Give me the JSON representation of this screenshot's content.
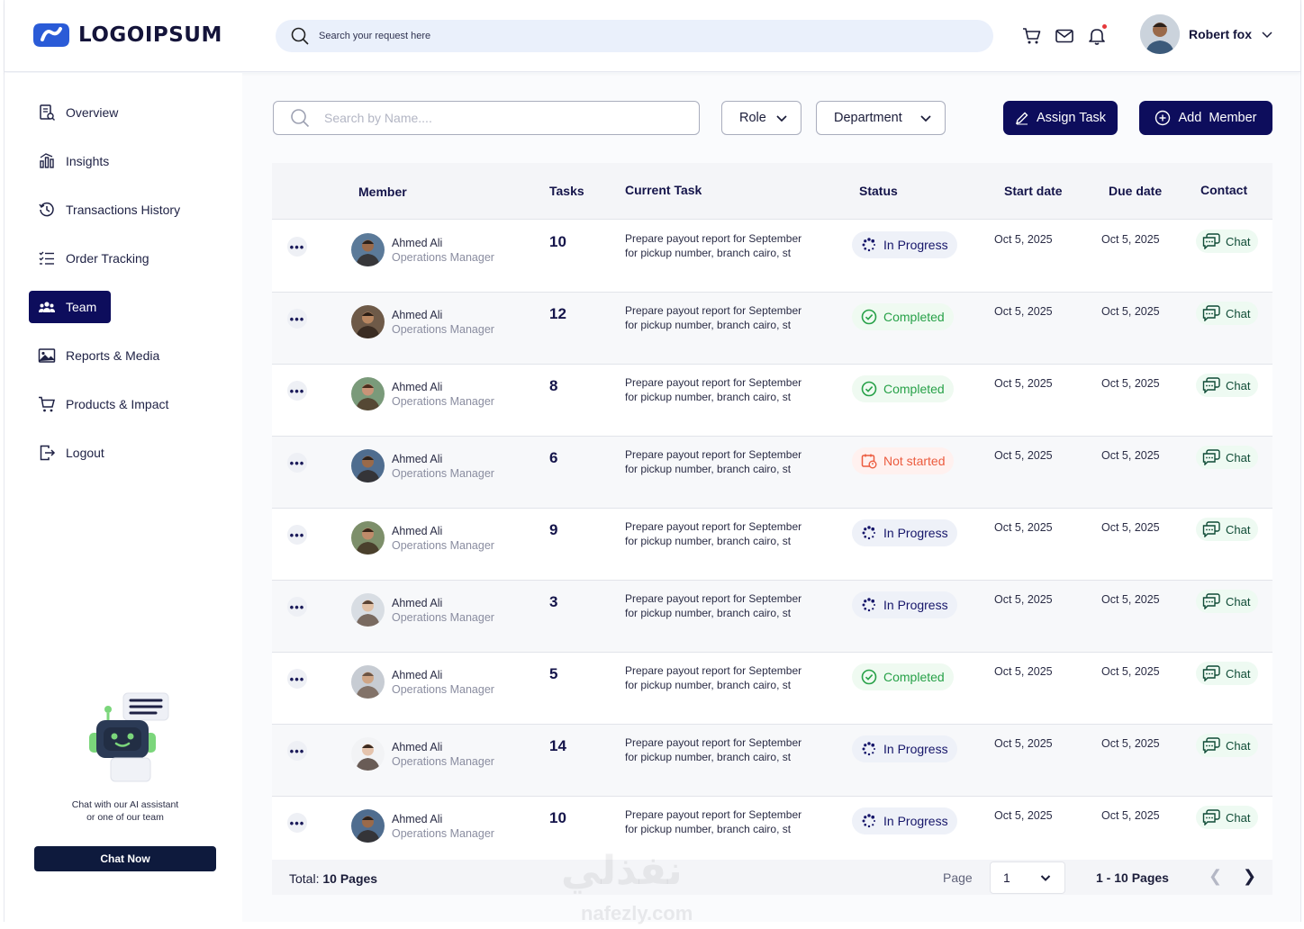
{
  "header": {
    "logo_text": "LOGOIPSUM",
    "search_placeholder": "Search your request here",
    "user_name": "Robert fox"
  },
  "sidebar": {
    "items": [
      {
        "label": "Overview",
        "icon": "document-search-icon"
      },
      {
        "label": "Insights",
        "icon": "chart-icon"
      },
      {
        "label": "Transactions History",
        "icon": "history-icon"
      },
      {
        "label": "Order Tracking",
        "icon": "checklist-icon"
      },
      {
        "label": "Team",
        "icon": "team-icon",
        "active": true
      },
      {
        "label": "Reports & Media",
        "icon": "image-icon"
      },
      {
        "label": "Products & Impact",
        "icon": "cart-icon"
      },
      {
        "label": "Logout",
        "icon": "logout-icon"
      }
    ],
    "assistant_text_line1": "Chat with our AI assistant",
    "assistant_text_line2": "or one of our team",
    "chat_now_label": "Chat Now"
  },
  "toolbar": {
    "name_search_placeholder": "Search by Name....",
    "role_label": "Role",
    "department_label": "Department",
    "assign_task_label": "Assign Task",
    "add_member_label": "Add  Member"
  },
  "table": {
    "headers": {
      "member": "Member",
      "tasks": "Tasks",
      "current_task": "Current Task",
      "status": "Status",
      "start_date": "Start date",
      "due_date": "Due date",
      "contact": "Contact"
    },
    "rows": [
      {
        "name": "Ahmed Ali",
        "role": "Operations Manager",
        "tasks": "10",
        "task": "Prepare payout report for September for pickup number, branch cairo, st",
        "status": "In Progress",
        "status_type": "progress",
        "start": "Oct 5, 2025",
        "due": "Oct 5, 2025",
        "contact": "Chat"
      },
      {
        "name": "Ahmed Ali",
        "role": "Operations Manager",
        "tasks": "12",
        "task": "Prepare payout report for September for pickup number, branch cairo, st",
        "status": "Completed",
        "status_type": "done",
        "start": "Oct 5, 2025",
        "due": "Oct 5, 2025",
        "contact": "Chat"
      },
      {
        "name": "Ahmed Ali",
        "role": "Operations Manager",
        "tasks": "8",
        "task": "Prepare payout report for September for pickup number, branch cairo, st",
        "status": "Completed",
        "status_type": "done",
        "start": "Oct 5, 2025",
        "due": "Oct 5, 2025",
        "contact": "Chat"
      },
      {
        "name": "Ahmed Ali",
        "role": "Operations Manager",
        "tasks": "6",
        "task": "Prepare payout report for September for pickup number, branch cairo, st",
        "status": "Not started",
        "status_type": "not",
        "start": "Oct 5, 2025",
        "due": "Oct 5, 2025",
        "contact": "Chat"
      },
      {
        "name": "Ahmed Ali",
        "role": "Operations Manager",
        "tasks": "9",
        "task": "Prepare payout report for September for pickup number, branch cairo, st",
        "status": "In Progress",
        "status_type": "progress",
        "start": "Oct 5, 2025",
        "due": "Oct 5, 2025",
        "contact": "Chat"
      },
      {
        "name": "Ahmed Ali",
        "role": "Operations Manager",
        "tasks": "3",
        "task": "Prepare payout report for September for pickup number, branch cairo, st",
        "status": "In Progress",
        "status_type": "progress",
        "start": "Oct 5, 2025",
        "due": "Oct 5, 2025",
        "contact": "Chat"
      },
      {
        "name": "Ahmed Ali",
        "role": "Operations Manager",
        "tasks": "5",
        "task": "Prepare payout report for September for pickup number, branch cairo, st",
        "status": "Completed",
        "status_type": "done",
        "start": "Oct 5, 2025",
        "due": "Oct 5, 2025",
        "contact": "Chat"
      },
      {
        "name": "Ahmed Ali",
        "role": "Operations Manager",
        "tasks": "14",
        "task": "Prepare payout report for September for pickup number, branch cairo, st",
        "status": "In Progress",
        "status_type": "progress",
        "start": "Oct 5, 2025",
        "due": "Oct 5, 2025",
        "contact": "Chat"
      },
      {
        "name": "Ahmed Ali",
        "role": "Operations Manager",
        "tasks": "10",
        "task": "Prepare payout report for September for pickup number, branch cairo, st",
        "status": "In Progress",
        "status_type": "progress",
        "start": "Oct 5, 2025",
        "due": "Oct 5, 2025",
        "contact": "Chat"
      }
    ],
    "footer": {
      "total_label": "Total:",
      "total_value": "10 Pages",
      "page_label": "Page",
      "page_value": "1",
      "range": "1 - 10 Pages"
    }
  },
  "watermark": {
    "arabic": "نفذلي",
    "latin": "nafezly.com"
  },
  "colors": {
    "primary": "#0d0d5c",
    "progress": "#16166a",
    "completed": "#27a148",
    "not_started": "#ec5b3e",
    "chat_bg": "#eefaf2"
  }
}
